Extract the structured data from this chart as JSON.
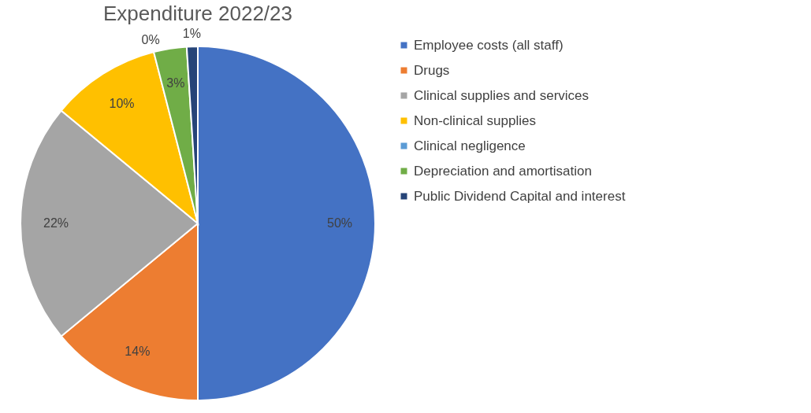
{
  "chart_data": {
    "type": "pie",
    "title": "Expenditure 2022/23",
    "categories": [
      "Employee costs (all staff)",
      "Drugs",
      "Clinical supplies and services",
      "Non-clinical supplies",
      "Clinical negligence",
      "Depreciation and amortisation",
      "Public Dividend Capital and interest"
    ],
    "values": [
      50,
      14,
      22,
      10,
      0,
      3,
      1
    ],
    "value_labels": [
      "50%",
      "14%",
      "22%",
      "10%",
      "0%",
      "3%",
      "1%"
    ],
    "colors": [
      "#4472c4",
      "#ed7d31",
      "#a5a5a5",
      "#ffc000",
      "#5b9bd5",
      "#70ad47",
      "#264478"
    ],
    "legend": "right"
  }
}
